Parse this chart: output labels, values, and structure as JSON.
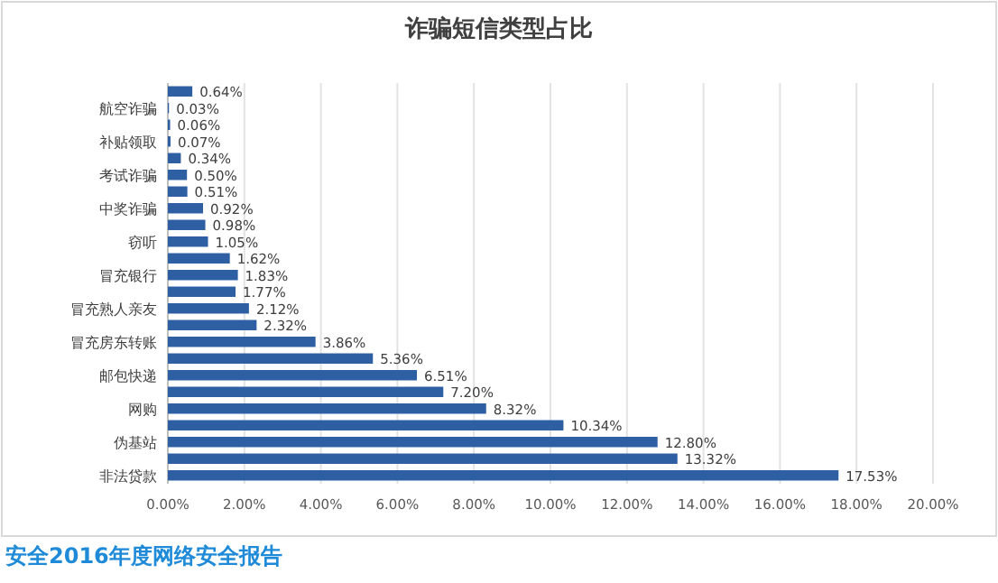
{
  "chart_data": {
    "type": "bar",
    "orientation": "horizontal",
    "title": "诈骗短信类型占比",
    "categories": [
      null,
      "航空诈骗",
      null,
      "补贴领取",
      null,
      "考试诈骗",
      null,
      "中奖诈骗",
      null,
      "窃听",
      null,
      "冒充银行",
      null,
      "冒充熟人亲友",
      null,
      "冒充房东转账",
      null,
      "邮包快递",
      null,
      "网购",
      null,
      "伪基站",
      null,
      "非法贷款"
    ],
    "values": [
      0.64,
      0.03,
      0.06,
      0.07,
      0.34,
      0.5,
      0.51,
      0.92,
      0.98,
      1.05,
      1.62,
      1.83,
      1.77,
      2.12,
      2.32,
      3.86,
      5.36,
      6.51,
      7.2,
      8.32,
      10.34,
      12.8,
      13.32,
      17.53
    ],
    "value_labels": [
      "0.64%",
      "0.03%",
      "0.06%",
      "0.07%",
      "0.34%",
      "0.50%",
      "0.51%",
      "0.92%",
      "0.98%",
      "1.05%",
      "1.62%",
      "1.83%",
      "1.77%",
      "2.12%",
      "2.32%",
      "3.86%",
      "5.36%",
      "6.51%",
      "7.20%",
      "8.32%",
      "10.34%",
      "12.80%",
      "13.32%",
      "17.53%"
    ],
    "color": "#2e5fa3",
    "xlim": [
      0,
      20
    ],
    "xticks": [
      {
        "value": 0,
        "label": "0.00%"
      },
      {
        "value": 2,
        "label": "2.00%"
      },
      {
        "value": 4,
        "label": "4.00%"
      },
      {
        "value": 6,
        "label": "6.00%"
      },
      {
        "value": 8,
        "label": "8.00%"
      },
      {
        "value": 10,
        "label": "10.00%"
      },
      {
        "value": 12,
        "label": "12.00%"
      },
      {
        "value": 14,
        "label": "14.00%"
      },
      {
        "value": 16,
        "label": "16.00%"
      },
      {
        "value": 18,
        "label": "18.00%"
      },
      {
        "value": 20,
        "label": "20.00%"
      }
    ],
    "grid": "x",
    "annotations": [
      "安全2016年度网络安全报告"
    ]
  }
}
